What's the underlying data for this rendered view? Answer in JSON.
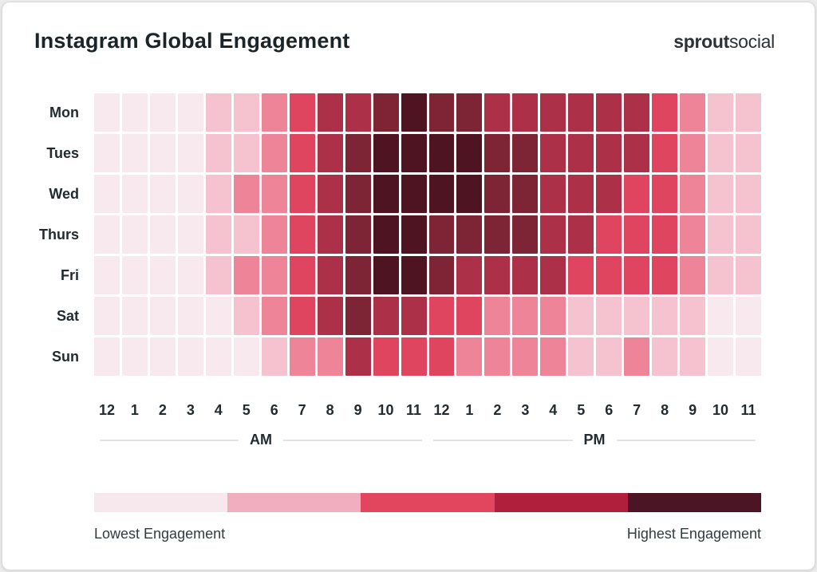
{
  "header": {
    "title": "Instagram Global Engagement",
    "logo": {
      "bold": "sprout",
      "light": "social"
    }
  },
  "chart_data": {
    "type": "heatmap",
    "title": "Instagram Global Engagement",
    "x_axis": {
      "hours": [
        "12",
        "1",
        "2",
        "3",
        "4",
        "5",
        "6",
        "7",
        "8",
        "9",
        "10",
        "11",
        "12",
        "1",
        "2",
        "3",
        "4",
        "5",
        "6",
        "7",
        "8",
        "9",
        "10",
        "11"
      ],
      "groups": [
        {
          "label": "AM"
        },
        {
          "label": "PM"
        }
      ]
    },
    "y_axis": {
      "days": [
        "Mon",
        "Tues",
        "Wed",
        "Thurs",
        "Fri",
        "Sat",
        "Sun"
      ]
    },
    "scale": {
      "description": "engagement level per cell, 0 = lowest, 6 = highest",
      "level_colors": [
        "#F8E9EE",
        "#F5C3CF",
        "#EE8498",
        "#E0455F",
        "#AC3048",
        "#7E2535",
        "#4E1422"
      ]
    },
    "values": [
      [
        0,
        0,
        0,
        0,
        1,
        1,
        2,
        3,
        4,
        4,
        5,
        6,
        5,
        5,
        4,
        4,
        4,
        4,
        4,
        4,
        3,
        2,
        1,
        1
      ],
      [
        0,
        0,
        0,
        0,
        1,
        1,
        2,
        3,
        4,
        5,
        6,
        6,
        6,
        6,
        5,
        5,
        4,
        4,
        4,
        4,
        3,
        2,
        1,
        1
      ],
      [
        0,
        0,
        0,
        0,
        1,
        2,
        2,
        3,
        4,
        5,
        6,
        6,
        6,
        6,
        5,
        5,
        4,
        4,
        4,
        3,
        3,
        2,
        1,
        1
      ],
      [
        0,
        0,
        0,
        0,
        1,
        1,
        2,
        3,
        4,
        5,
        6,
        6,
        5,
        5,
        5,
        5,
        4,
        4,
        3,
        3,
        3,
        2,
        1,
        1
      ],
      [
        0,
        0,
        0,
        0,
        1,
        2,
        2,
        3,
        4,
        5,
        6,
        6,
        5,
        4,
        4,
        4,
        4,
        3,
        3,
        3,
        3,
        2,
        1,
        1
      ],
      [
        0,
        0,
        0,
        0,
        0,
        1,
        2,
        3,
        4,
        5,
        4,
        4,
        3,
        3,
        2,
        2,
        2,
        1,
        1,
        1,
        1,
        1,
        0,
        0
      ],
      [
        0,
        0,
        0,
        0,
        0,
        0,
        1,
        2,
        2,
        4,
        3,
        3,
        3,
        2,
        2,
        2,
        2,
        1,
        1,
        2,
        1,
        1,
        0,
        0
      ]
    ],
    "legend": {
      "colors": [
        "#F7E8ED",
        "#F0AEBF",
        "#E2455E",
        "#B01F3B",
        "#4C1526"
      ],
      "low_label": "Lowest Engagement",
      "high_label": "Highest Engagement"
    }
  }
}
